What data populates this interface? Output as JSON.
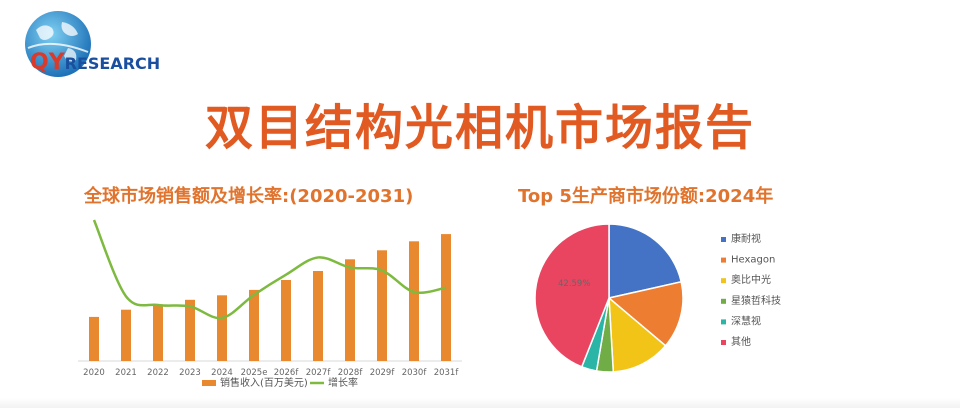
{
  "logo": {
    "brand_prefix": "QY",
    "brand_suffix": "RESEARCH"
  },
  "page_title": "双目结构光相机市场报告",
  "colors": {
    "title": "#e05a22",
    "bar": "#e8892f",
    "line": "#7dba3f"
  },
  "chart_data": [
    {
      "type": "bar",
      "title": "全球市场销售额及增长率:(2020-2031)",
      "categories": [
        "2020",
        "2021",
        "2022",
        "2023",
        "2024",
        "2025e",
        "2026f",
        "2027f",
        "2028f",
        "2029f",
        "2030f",
        "2031f"
      ],
      "series": [
        {
          "name": "销售收入(百万美元)",
          "type": "bar",
          "values": [
            49,
            57,
            63,
            68,
            73,
            79,
            90,
            100,
            113,
            123,
            133,
            141
          ]
        },
        {
          "name": "增长率",
          "type": "line",
          "values": [
            100,
            47,
            41,
            40,
            32,
            48,
            62,
            74,
            67,
            65,
            50,
            53
          ]
        }
      ],
      "xlabel": "",
      "ylabel": "",
      "ylim": [
        0,
        150
      ],
      "legend_position": "bottom",
      "grid": false
    },
    {
      "type": "pie",
      "title": "Top 5生产商市场份额:2024年",
      "slices": [
        {
          "name": "康耐视",
          "value": 20.8,
          "color": "#4472c4"
        },
        {
          "name": "Hexagon",
          "value": 14.2,
          "color": "#ed7d31"
        },
        {
          "name": "奥比中光",
          "value": 12.5,
          "color": "#f2c418"
        },
        {
          "name": "星猿哲科技",
          "value": 3.5,
          "color": "#70ad47"
        },
        {
          "name": "深慧视",
          "value": 3.2,
          "color": "#2bb5a6"
        },
        {
          "name": "其他",
          "value": 42.59,
          "color": "#e94560"
        }
      ],
      "data_labels": [
        "42.59%"
      ],
      "legend_position": "right"
    }
  ]
}
